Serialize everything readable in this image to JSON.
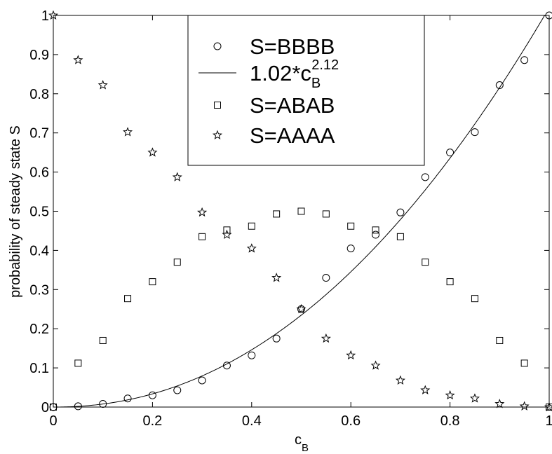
{
  "chart_data": {
    "type": "scatter",
    "xlabel": "c",
    "xlabel_sub": "B",
    "ylabel": "probability of steady state S",
    "xlim": [
      0,
      1
    ],
    "ylim": [
      0,
      1
    ],
    "x_ticks": [
      "0",
      "0.2",
      "0.4",
      "0.6",
      "0.8",
      "1"
    ],
    "y_ticks": [
      "0",
      "0.1",
      "0.2",
      "0.3",
      "0.4",
      "0.5",
      "0.6",
      "0.7",
      "0.8",
      "0.9",
      "1"
    ],
    "grid": false,
    "legend_position": "top-center",
    "series": [
      {
        "name": "S=BBBB",
        "marker": "circle",
        "x": [
          0,
          0.05,
          0.1,
          0.15,
          0.2,
          0.25,
          0.3,
          0.35,
          0.4,
          0.45,
          0.5,
          0.55,
          0.6,
          0.65,
          0.7,
          0.75,
          0.8,
          0.85,
          0.9,
          0.95,
          1
        ],
        "y": [
          0,
          0.002,
          0.008,
          0.022,
          0.03,
          0.043,
          0.068,
          0.106,
          0.132,
          0.175,
          0.25,
          0.33,
          0.405,
          0.44,
          0.497,
          0.587,
          0.65,
          0.702,
          0.822,
          0.886,
          1
        ]
      },
      {
        "name": "1.02*c",
        "name_sub": "B",
        "name_sup": "2.12",
        "marker": "line",
        "function": {
          "a": 1.02,
          "b": 2.12
        }
      },
      {
        "name": "S=ABAB",
        "marker": "square",
        "x": [
          0,
          0.05,
          0.1,
          0.15,
          0.2,
          0.25,
          0.3,
          0.35,
          0.4,
          0.45,
          0.5,
          0.55,
          0.6,
          0.65,
          0.7,
          0.75,
          0.8,
          0.85,
          0.9,
          0.95,
          1
        ],
        "y": [
          0,
          0.112,
          0.17,
          0.277,
          0.32,
          0.37,
          0.435,
          0.452,
          0.462,
          0.493,
          0.5,
          0.493,
          0.462,
          0.452,
          0.435,
          0.37,
          0.32,
          0.277,
          0.17,
          0.112,
          0
        ]
      },
      {
        "name": "S=AAAA",
        "marker": "star",
        "x": [
          0,
          0.05,
          0.1,
          0.15,
          0.2,
          0.25,
          0.3,
          0.35,
          0.4,
          0.45,
          0.5,
          0.55,
          0.6,
          0.65,
          0.7,
          0.75,
          0.8,
          0.85,
          0.9,
          0.95,
          1
        ],
        "y": [
          1,
          0.886,
          0.822,
          0.702,
          0.65,
          0.587,
          0.497,
          0.44,
          0.405,
          0.33,
          0.25,
          0.175,
          0.132,
          0.106,
          0.068,
          0.043,
          0.03,
          0.022,
          0.008,
          0.002,
          0
        ]
      }
    ]
  }
}
